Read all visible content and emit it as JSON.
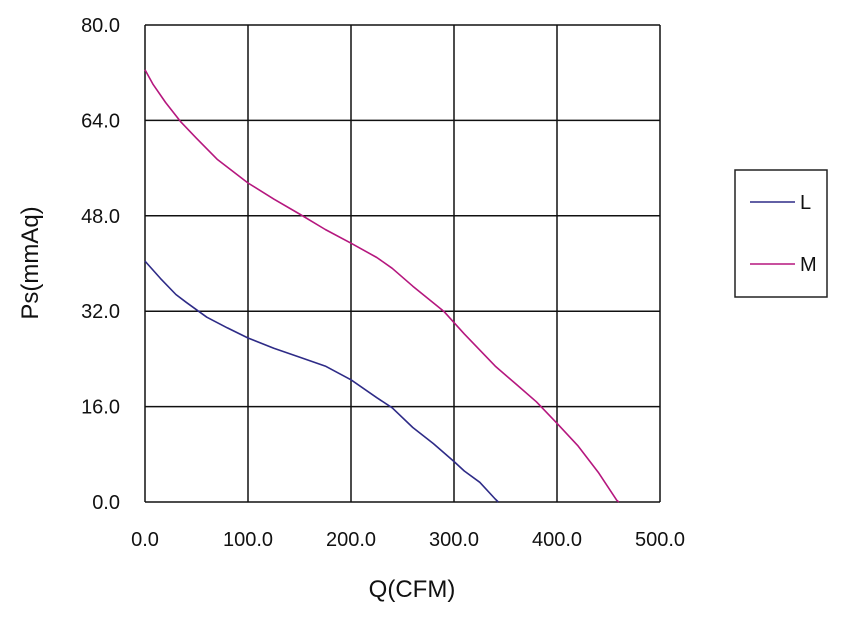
{
  "chart_data": {
    "type": "line",
    "title": "",
    "xlabel": "Q(CFM)",
    "ylabel": "Ps(mmAq)",
    "xlim": [
      0,
      500
    ],
    "ylim": [
      0,
      80
    ],
    "grid": true,
    "legend_position": "right",
    "x_ticks": [
      "0.0",
      "100.0",
      "200.0",
      "300.0",
      "400.0",
      "500.0"
    ],
    "y_ticks": [
      "0.0",
      "16.0",
      "32.0",
      "48.0",
      "64.0",
      "80.0"
    ],
    "series": [
      {
        "name": "L",
        "color": "#2e2b87",
        "points": [
          [
            0,
            40.4
          ],
          [
            15,
            37.5
          ],
          [
            30,
            34.8
          ],
          [
            40,
            33.5
          ],
          [
            60,
            31.0
          ],
          [
            80,
            29.2
          ],
          [
            100,
            27.5
          ],
          [
            125,
            25.8
          ],
          [
            150,
            24.3
          ],
          [
            175,
            22.8
          ],
          [
            200,
            20.5
          ],
          [
            225,
            17.5
          ],
          [
            240,
            15.8
          ],
          [
            260,
            12.5
          ],
          [
            280,
            9.8
          ],
          [
            300,
            6.8
          ],
          [
            310,
            5.2
          ],
          [
            325,
            3.3
          ],
          [
            340,
            0.5
          ],
          [
            343,
            0
          ]
        ]
      },
      {
        "name": "M",
        "color": "#b5177e",
        "points": [
          [
            0,
            72.5
          ],
          [
            8,
            70.0
          ],
          [
            20,
            67.0
          ],
          [
            35,
            63.7
          ],
          [
            50,
            61.0
          ],
          [
            70,
            57.5
          ],
          [
            100,
            53.5
          ],
          [
            125,
            50.8
          ],
          [
            150,
            48.3
          ],
          [
            175,
            45.7
          ],
          [
            200,
            43.4
          ],
          [
            225,
            41.0
          ],
          [
            240,
            39.2
          ],
          [
            260,
            36.2
          ],
          [
            290,
            32.0
          ],
          [
            310,
            28.2
          ],
          [
            340,
            22.8
          ],
          [
            360,
            19.8
          ],
          [
            380,
            16.8
          ],
          [
            400,
            13.2
          ],
          [
            420,
            9.5
          ],
          [
            440,
            5.0
          ],
          [
            458,
            0.3
          ],
          [
            460,
            0
          ]
        ]
      }
    ]
  }
}
